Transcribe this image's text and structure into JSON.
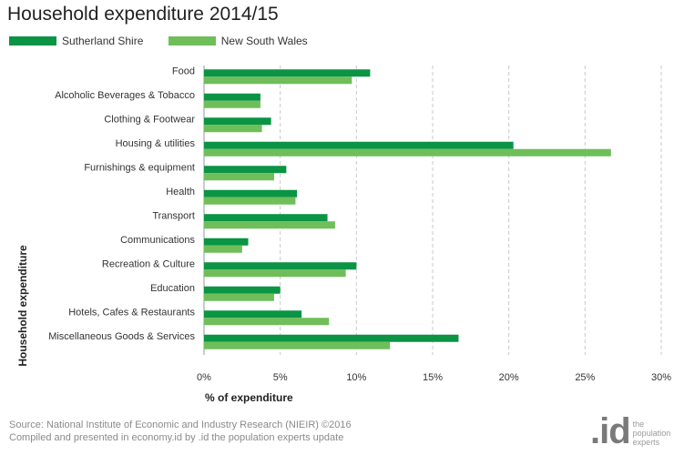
{
  "colors": {
    "series1": "#0a9444",
    "series2": "#6fbe5a",
    "grid": "#c8c8c8",
    "axis": "#999999"
  },
  "chart_data": {
    "type": "bar",
    "orientation": "horizontal",
    "title": "Household expenditure 2014/15",
    "xlabel": "% of expenditure",
    "ylabel": "Household expenditure",
    "xlim": [
      0,
      30
    ],
    "x_ticks": [
      "0%",
      "5%",
      "10%",
      "15%",
      "20%",
      "25%",
      "30%"
    ],
    "grid": true,
    "legend_position": "top-left",
    "categories": [
      "Food",
      "Alcoholic Beverages & Tobacco",
      "Clothing & Footwear",
      "Housing & utilities",
      "Furnishings & equipment",
      "Health",
      "Transport",
      "Communications",
      "Recreation & Culture",
      "Education",
      "Hotels, Cafes & Restaurants",
      "Miscellaneous Goods & Services"
    ],
    "series": [
      {
        "name": "Sutherland Shire",
        "values": [
          10.9,
          3.7,
          4.4,
          20.3,
          5.4,
          6.1,
          8.1,
          2.9,
          10.0,
          5.0,
          6.4,
          16.7
        ]
      },
      {
        "name": "New South Wales",
        "values": [
          9.7,
          3.7,
          3.8,
          26.7,
          4.6,
          6.0,
          8.6,
          2.5,
          9.3,
          4.6,
          8.2,
          12.2
        ]
      }
    ]
  },
  "footer": {
    "source_line1": "Source: National Institute of Economic and Industry Research (NIEIR) ©2016",
    "source_line2": "Compiled and presented in economy.id by .id the population experts update",
    "logo_mark": ".id",
    "logo_text_1": "the",
    "logo_text_2": "population",
    "logo_text_3": "experts"
  }
}
